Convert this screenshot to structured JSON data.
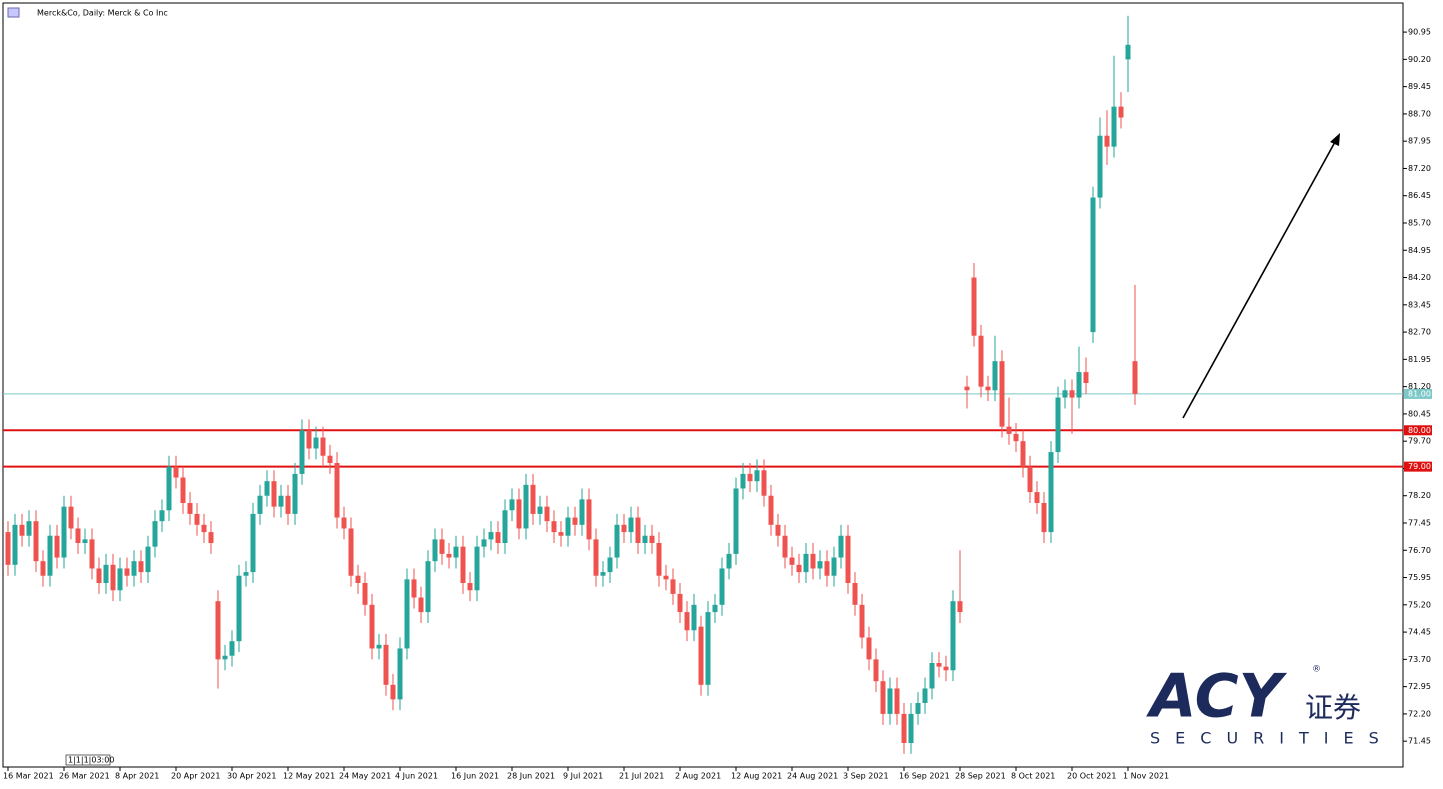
{
  "chart_data": {
    "type": "candlestick",
    "title": "Merck&Co, Daily:  Merck & Co Inc",
    "timer": "1|1|1|03:00",
    "logo": {
      "brand": "ACY",
      "chinese": "证券",
      "sub": "SECURITIES",
      "mark": "®"
    },
    "up_color": "#26a69a",
    "down_color": "#ef5350",
    "categories": [
      "16 Mar 2021",
      null,
      null,
      null,
      null,
      null,
      null,
      null,
      "26 Mar 2021",
      null,
      null,
      null,
      null,
      null,
      null,
      null,
      "8 Apr 2021",
      null,
      null,
      null,
      null,
      null,
      null,
      null,
      "20 Apr 2021",
      null,
      null,
      null,
      null,
      null,
      null,
      null,
      "30 Apr 2021",
      null,
      null,
      null,
      null,
      null,
      null,
      null,
      "12 May 2021",
      null,
      null,
      null,
      null,
      null,
      null,
      null,
      "24 May 2021",
      null,
      null,
      null,
      null,
      null,
      null,
      null,
      "4 Jun 2021",
      null,
      null,
      null,
      null,
      null,
      null,
      null,
      "16 Jun 2021",
      null,
      null,
      null,
      null,
      null,
      null,
      null,
      "28 Jun 2021",
      null,
      null,
      null,
      null,
      null,
      null,
      null,
      "9 Jul 2021",
      null,
      null,
      null,
      null,
      null,
      null,
      null,
      "21 Jul 2021",
      null,
      null,
      null,
      null,
      null,
      null,
      null,
      "2 Aug 2021",
      null,
      null,
      null,
      null,
      null,
      null,
      null,
      "12 Aug 2021",
      null,
      null,
      null,
      null,
      null,
      null,
      null,
      "24 Aug 2021",
      null,
      null,
      null,
      null,
      null,
      null,
      null,
      "3 Sep 2021",
      null,
      null,
      null,
      null,
      null,
      null,
      null,
      "16 Sep 2021",
      null,
      null,
      null,
      null,
      null,
      null,
      null,
      "28 Sep 2021",
      null,
      null,
      null,
      null,
      null,
      null,
      null,
      "8 Oct 2021",
      null,
      null,
      null,
      null,
      null,
      null,
      null,
      "20 Oct 2021",
      null,
      null,
      null,
      null,
      null,
      null,
      null,
      "1 Nov 2021",
      null
    ],
    "open": [
      77.2,
      76.3,
      77.4,
      77.1,
      77.5,
      76.4,
      76.0,
      77.1,
      76.5,
      77.9,
      77.3,
      76.9,
      77.0,
      76.2,
      75.8,
      76.3,
      75.6,
      76.2,
      76.0,
      76.4,
      76.1,
      76.8,
      77.5,
      77.8,
      79.0,
      78.7,
      78.0,
      77.7,
      77.4,
      77.2,
      75.3,
      73.7,
      73.8,
      74.2,
      76.0,
      76.1,
      77.7,
      78.2,
      78.6,
      77.9,
      78.2,
      77.7,
      78.8,
      80.0,
      79.5,
      79.8,
      79.3,
      79.1,
      77.6,
      77.3,
      76.0,
      75.8,
      75.2,
      74.0,
      74.1,
      73.0,
      72.6,
      74.0,
      75.9,
      75.4,
      75.0,
      76.4,
      77.0,
      76.6,
      76.5,
      76.8,
      75.8,
      75.6,
      76.8,
      77.0,
      77.2,
      76.9,
      77.8,
      78.1,
      77.3,
      78.5,
      77.7,
      77.9,
      77.5,
      77.2,
      77.1,
      77.6,
      77.4,
      78.1,
      77.0,
      76.0,
      76.1,
      76.5,
      77.4,
      77.2,
      77.6,
      76.9,
      77.1,
      76.9,
      76.0,
      75.9,
      75.5,
      75.0,
      74.5,
      74.6,
      73.0,
      75.0,
      75.2,
      76.2,
      76.6,
      78.4,
      78.8,
      78.6,
      78.9,
      78.2,
      77.4,
      77.1,
      76.5,
      76.3,
      76.1,
      76.6,
      76.2,
      76.4,
      76.0,
      76.5,
      77.1,
      75.8,
      75.2,
      74.3,
      73.7,
      73.1,
      72.2,
      72.9,
      72.2,
      71.4,
      72.2,
      72.5,
      72.9,
      73.6,
      73.5,
      73.4,
      75.3,
      81.2,
      84.2,
      82.6,
      81.2,
      81.1,
      81.9,
      80.1,
      79.9,
      79.7,
      79.0,
      78.3,
      78.0,
      77.2,
      79.4,
      80.9,
      81.1,
      80.9,
      81.6,
      82.7,
      86.4,
      88.1,
      87.8,
      88.9,
      90.2,
      81.9
    ],
    "high": [
      77.5,
      77.7,
      77.7,
      77.8,
      77.8,
      76.7,
      77.4,
      77.4,
      78.2,
      78.2,
      77.6,
      77.3,
      77.3,
      76.5,
      76.6,
      76.6,
      76.5,
      76.5,
      76.7,
      76.7,
      77.1,
      77.8,
      78.1,
      79.3,
      79.3,
      79.0,
      78.3,
      78.0,
      77.7,
      77.5,
      75.6,
      74.1,
      74.5,
      76.3,
      76.4,
      78.0,
      78.5,
      78.9,
      78.9,
      78.5,
      78.5,
      79.1,
      80.3,
      80.3,
      80.1,
      80.1,
      79.6,
      79.4,
      77.9,
      77.6,
      76.3,
      76.1,
      75.5,
      74.4,
      74.4,
      73.3,
      74.3,
      76.2,
      76.2,
      75.7,
      76.7,
      77.3,
      77.3,
      76.9,
      77.1,
      77.1,
      76.1,
      77.1,
      77.3,
      77.5,
      77.5,
      78.1,
      78.4,
      78.4,
      78.8,
      78.8,
      78.2,
      78.2,
      77.8,
      77.5,
      77.9,
      77.9,
      78.4,
      78.4,
      77.3,
      76.4,
      76.8,
      77.7,
      77.7,
      77.9,
      77.9,
      77.4,
      77.4,
      77.2,
      76.3,
      76.2,
      75.8,
      75.3,
      75.5,
      74.9,
      75.3,
      75.5,
      76.5,
      76.9,
      78.7,
      79.1,
      79.1,
      79.2,
      79.2,
      78.5,
      77.7,
      77.4,
      76.8,
      76.6,
      76.9,
      76.9,
      76.7,
      76.7,
      76.8,
      77.4,
      77.4,
      76.1,
      75.5,
      74.6,
      74.0,
      73.4,
      73.2,
      73.2,
      72.5,
      72.5,
      72.8,
      73.2,
      73.9,
      73.9,
      73.8,
      75.6,
      76.7,
      81.5,
      84.6,
      82.9,
      81.5,
      82.6,
      82.2,
      80.9,
      80.2,
      80.0,
      79.3,
      78.6,
      78.3,
      79.7,
      81.2,
      81.4,
      81.4,
      82.3,
      82.0,
      86.7,
      88.6,
      88.8,
      90.3,
      89.3,
      91.4,
      84.0
    ],
    "low": [
      76.0,
      76.0,
      76.8,
      76.8,
      76.1,
      75.7,
      75.7,
      76.2,
      76.2,
      77.0,
      76.6,
      76.6,
      75.9,
      75.5,
      75.5,
      75.3,
      75.3,
      75.7,
      75.7,
      75.8,
      75.8,
      76.5,
      77.2,
      77.5,
      78.4,
      77.7,
      77.4,
      77.1,
      76.9,
      76.6,
      72.9,
      73.4,
      73.5,
      73.9,
      75.7,
      75.8,
      77.4,
      77.9,
      77.6,
      77.6,
      77.4,
      77.4,
      78.5,
      79.2,
      79.2,
      79.0,
      78.8,
      77.3,
      77.0,
      75.7,
      75.5,
      74.9,
      73.7,
      73.7,
      72.7,
      72.3,
      72.3,
      73.7,
      75.1,
      74.7,
      74.7,
      76.1,
      76.3,
      76.2,
      76.2,
      75.5,
      75.3,
      75.3,
      76.5,
      76.7,
      76.6,
      76.6,
      77.5,
      77.0,
      77.0,
      77.4,
      77.4,
      77.2,
      76.9,
      76.8,
      76.8,
      77.1,
      77.1,
      76.7,
      75.7,
      75.7,
      75.8,
      76.2,
      76.9,
      76.9,
      76.6,
      76.6,
      76.6,
      75.7,
      75.6,
      75.2,
      74.7,
      74.2,
      74.2,
      72.7,
      72.7,
      74.7,
      74.9,
      75.9,
      76.3,
      78.1,
      78.3,
      78.3,
      77.9,
      77.1,
      76.8,
      76.2,
      76.0,
      75.8,
      75.8,
      75.9,
      75.9,
      75.7,
      75.7,
      76.2,
      75.5,
      74.9,
      74.0,
      73.4,
      72.8,
      71.9,
      71.9,
      71.9,
      71.1,
      71.1,
      71.9,
      72.2,
      72.6,
      73.2,
      73.1,
      73.1,
      74.7,
      80.6,
      82.3,
      80.9,
      80.8,
      80.8,
      79.8,
      79.6,
      79.4,
      78.7,
      78.0,
      77.7,
      76.9,
      76.9,
      79.1,
      80.6,
      79.9,
      80.6,
      81.0,
      82.4,
      86.1,
      87.3,
      87.5,
      88.3,
      89.3,
      80.7
    ],
    "close": [
      76.3,
      77.4,
      77.1,
      77.5,
      76.4,
      76.0,
      77.1,
      76.5,
      77.9,
      77.3,
      76.9,
      77.0,
      76.2,
      75.8,
      76.3,
      75.6,
      76.2,
      76.0,
      76.4,
      76.1,
      76.8,
      77.5,
      77.8,
      79.0,
      78.7,
      78.0,
      77.7,
      77.4,
      77.2,
      76.9,
      73.7,
      73.8,
      74.2,
      76.0,
      76.1,
      77.7,
      78.2,
      78.6,
      77.9,
      78.2,
      77.7,
      78.8,
      80.0,
      79.5,
      79.8,
      79.3,
      79.1,
      77.6,
      77.3,
      76.0,
      75.8,
      75.2,
      74.0,
      74.1,
      73.0,
      72.6,
      74.0,
      75.9,
      75.4,
      75.0,
      76.4,
      77.0,
      76.6,
      76.5,
      76.8,
      75.8,
      75.6,
      76.8,
      77.0,
      77.2,
      76.9,
      77.8,
      78.1,
      77.3,
      78.5,
      77.7,
      77.9,
      77.5,
      77.2,
      77.1,
      77.6,
      77.4,
      78.1,
      77.0,
      76.0,
      76.1,
      76.5,
      77.4,
      77.2,
      77.6,
      76.9,
      77.1,
      76.9,
      76.0,
      75.9,
      75.5,
      75.0,
      74.5,
      75.2,
      73.0,
      75.0,
      75.2,
      76.2,
      76.6,
      78.4,
      78.8,
      78.6,
      78.9,
      78.2,
      77.4,
      77.1,
      76.5,
      76.3,
      76.1,
      76.6,
      76.2,
      76.4,
      76.0,
      76.5,
      77.1,
      75.8,
      75.2,
      74.3,
      73.7,
      73.1,
      72.2,
      72.9,
      72.2,
      71.4,
      72.2,
      72.5,
      72.9,
      73.6,
      73.5,
      73.4,
      75.3,
      75.0,
      81.1,
      82.6,
      81.2,
      81.1,
      81.9,
      80.1,
      79.9,
      79.7,
      79.0,
      78.3,
      78.0,
      77.2,
      79.4,
      80.9,
      81.1,
      80.9,
      81.6,
      81.3,
      86.4,
      88.1,
      87.8,
      88.9,
      88.6,
      90.6,
      81.0
    ],
    "ylim": [
      70.74,
      91.75
    ],
    "yticks": [
      71.45,
      {
        "value": 72.2,
        "label": "72.20"
      },
      72.95,
      {
        "value": 73.7,
        "label": "73.70"
      },
      74.45,
      {
        "value": 75.2,
        "label": "75.20"
      },
      75.95,
      {
        "value": 76.7,
        "label": "76.70"
      },
      77.45,
      {
        "value": 78.2,
        "label": "78.20"
      },
      78.95,
      {
        "value": 79.7,
        "label": "79.70"
      },
      80.45,
      {
        "value": 81.2,
        "label": "81.20"
      },
      81.95,
      {
        "value": 82.7,
        "label": "82.70"
      },
      83.45,
      {
        "value": 84.2,
        "label": "84.20"
      },
      84.95,
      {
        "value": 85.7,
        "label": "85.70"
      },
      86.45,
      {
        "value": 87.2,
        "label": "87.20"
      },
      87.95,
      {
        "value": 88.7,
        "label": "88.70"
      },
      89.45,
      {
        "value": 90.2,
        "label": "90.20"
      },
      90.95
    ],
    "hlines": [
      {
        "value": 81,
        "label": "81.00",
        "color": "#7cc7c7"
      },
      {
        "value": 80,
        "label": "80.00",
        "color": "#e01010"
      },
      {
        "value": 79,
        "label": "79.00",
        "color": "#e01010"
      }
    ]
  }
}
